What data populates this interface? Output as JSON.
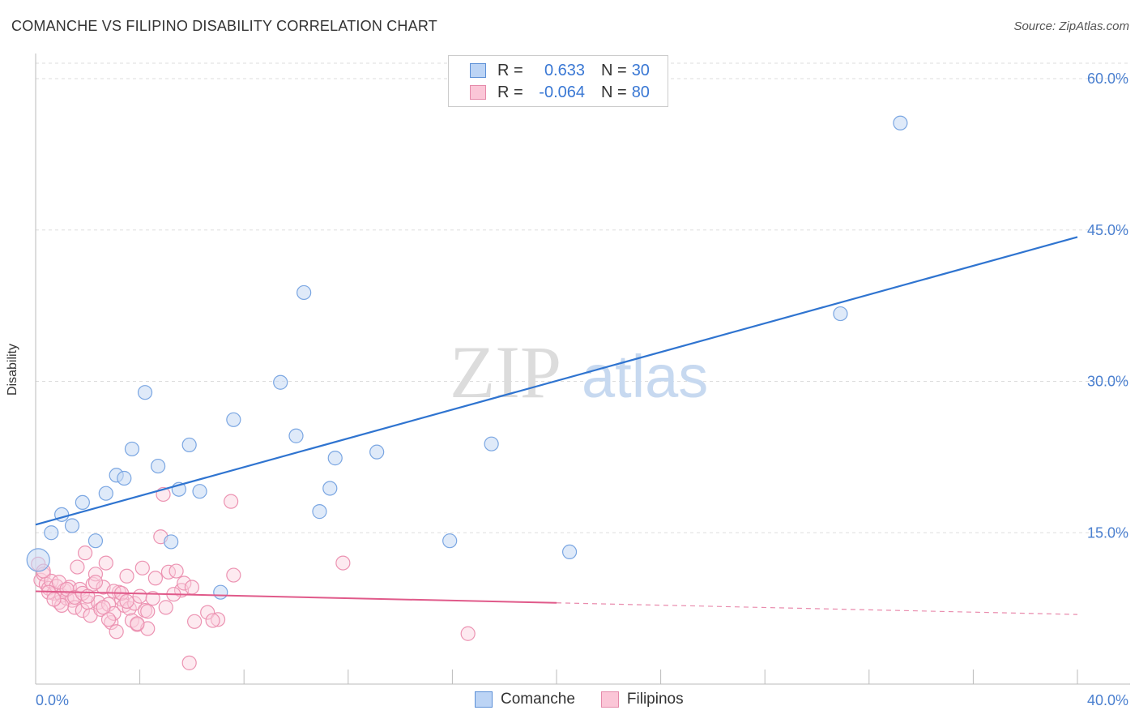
{
  "title": "COMANCHE VS FILIPINO DISABILITY CORRELATION CHART",
  "source": "Source: ZipAtlas.com",
  "watermark": {
    "part1": "ZIP",
    "part2": "atlas"
  },
  "legend": {
    "rows": [
      {
        "r_label": "R =",
        "r_value": "0.633",
        "n_label": "N =",
        "n_value": "30",
        "color": "#5b8fd6",
        "fill": "#bcd4f5"
      },
      {
        "r_label": "R =",
        "r_value": "-0.064",
        "n_label": "N =",
        "n_value": "80",
        "color": "#e58aaa",
        "fill": "#fbc6d7"
      }
    ],
    "bottom": [
      {
        "label": "Comanche",
        "color": "#5b8fd6",
        "fill": "#bcd4f5"
      },
      {
        "label": "Filipinos",
        "color": "#e58aaa",
        "fill": "#fbc6d7"
      }
    ]
  },
  "colors": {
    "comanche_line": "#2f74d0",
    "filipino_line": "#e05a8a",
    "comanche_point_stroke": "#7aa6e2",
    "comanche_point_fill": "#c5d9f4",
    "filipino_point_stroke": "#ec93b2",
    "filipino_point_fill": "#fbd0de",
    "grid": "#dddddd",
    "tick_text": "#4a7fcf"
  },
  "chart_data": {
    "type": "scatter",
    "title": "COMANCHE VS FILIPINO DISABILITY CORRELATION CHART",
    "xlabel": "",
    "ylabel": "Disability",
    "xlim": [
      0,
      40
    ],
    "ylim": [
      0,
      60
    ],
    "x_tick_labels": [
      "0.0%",
      "40.0%"
    ],
    "y_ticks": [
      15,
      30,
      45,
      60
    ],
    "y_tick_labels": [
      "15.0%",
      "30.0%",
      "45.0%",
      "60.0%"
    ],
    "grid": "horizontal dashed",
    "legend_position": "top-center",
    "series": [
      {
        "name": "Comanche",
        "R": 0.633,
        "N": 30,
        "trend": {
          "x": [
            0,
            40
          ],
          "y": [
            15.8,
            44.3
          ],
          "dashed_from": null
        },
        "points": [
          [
            0.1,
            12.3
          ],
          [
            0.6,
            15.0
          ],
          [
            1.0,
            16.8
          ],
          [
            1.4,
            15.7
          ],
          [
            1.8,
            18.0
          ],
          [
            2.3,
            14.2
          ],
          [
            2.7,
            18.9
          ],
          [
            3.1,
            20.7
          ],
          [
            3.4,
            20.4
          ],
          [
            3.7,
            23.3
          ],
          [
            4.2,
            28.9
          ],
          [
            4.7,
            21.6
          ],
          [
            5.2,
            14.1
          ],
          [
            5.5,
            19.3
          ],
          [
            5.9,
            23.7
          ],
          [
            6.3,
            19.1
          ],
          [
            7.1,
            9.1
          ],
          [
            7.6,
            26.2
          ],
          [
            9.4,
            29.9
          ],
          [
            10.0,
            24.6
          ],
          [
            10.3,
            38.8
          ],
          [
            10.9,
            17.1
          ],
          [
            11.3,
            19.4
          ],
          [
            11.5,
            22.4
          ],
          [
            13.1,
            23.0
          ],
          [
            15.9,
            14.2
          ],
          [
            17.5,
            23.8
          ],
          [
            20.5,
            13.1
          ],
          [
            30.9,
            36.7
          ],
          [
            33.2,
            55.6
          ]
        ]
      },
      {
        "name": "Filipinos",
        "R": -0.064,
        "N": 80,
        "trend": {
          "x": [
            0,
            40
          ],
          "y": [
            9.2,
            6.9
          ],
          "dashed_from": 20
        },
        "points": [
          [
            0.1,
            11.9
          ],
          [
            0.2,
            10.3
          ],
          [
            0.3,
            10.9
          ],
          [
            0.4,
            9.9
          ],
          [
            0.5,
            9.5
          ],
          [
            0.6,
            10.2
          ],
          [
            0.7,
            9.0
          ],
          [
            0.8,
            9.7
          ],
          [
            0.9,
            8.1
          ],
          [
            1.0,
            8.8
          ],
          [
            1.1,
            9.3
          ],
          [
            1.2,
            8.5
          ],
          [
            1.3,
            9.6
          ],
          [
            1.4,
            8.3
          ],
          [
            1.5,
            7.6
          ],
          [
            1.6,
            11.6
          ],
          [
            1.7,
            9.4
          ],
          [
            1.8,
            7.3
          ],
          [
            1.9,
            13.0
          ],
          [
            2.0,
            8.1
          ],
          [
            2.1,
            6.8
          ],
          [
            2.2,
            9.9
          ],
          [
            2.3,
            10.9
          ],
          [
            2.4,
            8.1
          ],
          [
            2.5,
            7.4
          ],
          [
            2.6,
            9.6
          ],
          [
            2.7,
            12.0
          ],
          [
            2.8,
            7.9
          ],
          [
            2.9,
            6.1
          ],
          [
            3.0,
            7.0
          ],
          [
            3.1,
            5.2
          ],
          [
            3.2,
            9.1
          ],
          [
            3.3,
            8.4
          ],
          [
            3.4,
            7.8
          ],
          [
            3.5,
            10.7
          ],
          [
            3.6,
            7.5
          ],
          [
            3.7,
            6.3
          ],
          [
            3.8,
            8.0
          ],
          [
            3.9,
            5.9
          ],
          [
            4.0,
            8.7
          ],
          [
            4.1,
            11.5
          ],
          [
            4.2,
            7.3
          ],
          [
            4.3,
            5.5
          ],
          [
            4.5,
            8.5
          ],
          [
            4.8,
            14.6
          ],
          [
            4.9,
            18.8
          ],
          [
            5.1,
            11.1
          ],
          [
            5.4,
            11.2
          ],
          [
            5.6,
            9.3
          ],
          [
            5.9,
            2.1
          ],
          [
            6.1,
            6.2
          ],
          [
            6.6,
            7.1
          ],
          [
            7.0,
            6.4
          ],
          [
            7.5,
            18.1
          ],
          [
            7.6,
            10.8
          ],
          [
            11.8,
            12.0
          ],
          [
            16.6,
            5.0
          ],
          [
            0.3,
            11.2
          ],
          [
            0.5,
            9.1
          ],
          [
            0.9,
            10.1
          ],
          [
            1.0,
            7.8
          ],
          [
            1.2,
            9.4
          ],
          [
            1.5,
            8.6
          ],
          [
            1.8,
            9.0
          ],
          [
            2.0,
            8.7
          ],
          [
            2.3,
            10.1
          ],
          [
            2.6,
            7.6
          ],
          [
            2.8,
            6.4
          ],
          [
            3.0,
            9.2
          ],
          [
            3.3,
            9.0
          ],
          [
            3.5,
            8.2
          ],
          [
            3.9,
            6.0
          ],
          [
            4.3,
            7.2
          ],
          [
            4.6,
            10.5
          ],
          [
            5.0,
            7.6
          ],
          [
            5.3,
            8.9
          ],
          [
            5.7,
            10.0
          ],
          [
            6.0,
            9.6
          ],
          [
            6.8,
            6.3
          ],
          [
            0.7,
            8.4
          ]
        ]
      }
    ]
  }
}
